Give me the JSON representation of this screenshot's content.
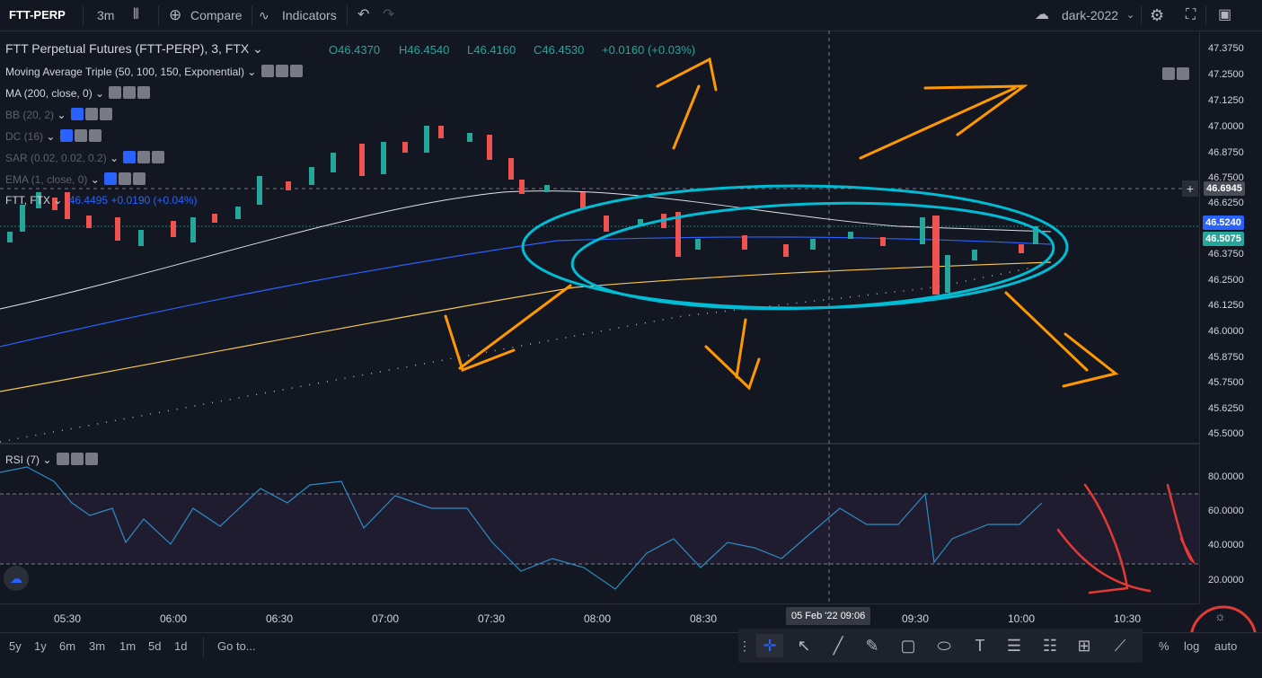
{
  "toolbar": {
    "symbol": "FTT-PERP",
    "interval": "3m",
    "compare": "Compare",
    "indicators": "Indicators",
    "theme": "dark-2022"
  },
  "legend": {
    "title": "FTT Perpetual Futures (FTT-PERP), 3, FTX",
    "open": "O46.4370",
    "high": "H46.4540",
    "low": "L46.4160",
    "close": "C46.4530",
    "change": "+0.0160 (+0.03%)",
    "indicators": [
      "Moving Average Triple (50, 100, 150, Exponential)",
      "MA (200, close, 0)",
      "BB (20, 2)",
      "DC (16)",
      "SAR (0.02, 0.02, 0.2)",
      "EMA (1, close, 0)"
    ],
    "compare_symbol": "FTT, FTX",
    "compare_value": "46.4495",
    "compare_change": "+0.0190 (+0.04%)",
    "rsi": "RSI (7)"
  },
  "price_axis": [
    "47.3750",
    "47.2500",
    "47.1250",
    "47.0000",
    "46.8750",
    "46.7500",
    "46.6250",
    "46.3750",
    "46.2500",
    "46.1250",
    "46.0000",
    "45.8750",
    "45.7500",
    "45.6250",
    "45.5000"
  ],
  "price_tags": {
    "crosshair": "46.6945",
    "last": "46.5240",
    "compare": "46.5075"
  },
  "rsi_axis": [
    "80.0000",
    "60.0000",
    "40.0000",
    "20.0000"
  ],
  "time_axis": [
    "05:30",
    "06:00",
    "06:30",
    "07:00",
    "07:30",
    "08:00",
    "08:30",
    "09:30",
    "10:00",
    "10:30"
  ],
  "crosshair_time": "05 Feb '22  09:06",
  "ranges": [
    "5y",
    "1y",
    "6m",
    "3m",
    "1m",
    "5d",
    "1d"
  ],
  "goto": "Go to...",
  "scale_buttons": {
    "percent": "%",
    "log": "log",
    "auto": "auto"
  },
  "colors": {
    "up": "#26a69a",
    "down": "#ef5350",
    "ema50": "#e0e3eb",
    "ema100": "#2962ff",
    "ema150": "#f9c74f",
    "annot_orange": "#ff9800",
    "annot_blue": "#00bcd4",
    "annot_red": "#e53935"
  },
  "chart_data": {
    "type": "candlestick",
    "title": "FTT Perpetual Futures (FTT-PERP), 3, FTX",
    "ylim": [
      45.45,
      47.42
    ],
    "x": [
      "05:15",
      "05:30",
      "05:45",
      "06:00",
      "06:15",
      "06:30",
      "06:45",
      "07:00",
      "07:15",
      "07:30",
      "07:45",
      "08:00",
      "08:15",
      "08:30",
      "08:45",
      "09:00",
      "09:15",
      "09:30",
      "09:45",
      "10:00",
      "10:05"
    ],
    "close": [
      46.47,
      46.6,
      46.55,
      46.45,
      46.5,
      46.62,
      46.78,
      46.9,
      46.98,
      46.85,
      46.62,
      46.6,
      46.52,
      46.44,
      46.47,
      46.52,
      46.48,
      46.25,
      46.42,
      46.45,
      46.53
    ],
    "rsi": [
      76,
      70,
      55,
      58,
      52,
      68,
      64,
      74,
      72,
      66,
      40,
      34,
      22,
      30,
      36,
      38,
      55,
      60,
      45,
      52,
      64
    ]
  }
}
